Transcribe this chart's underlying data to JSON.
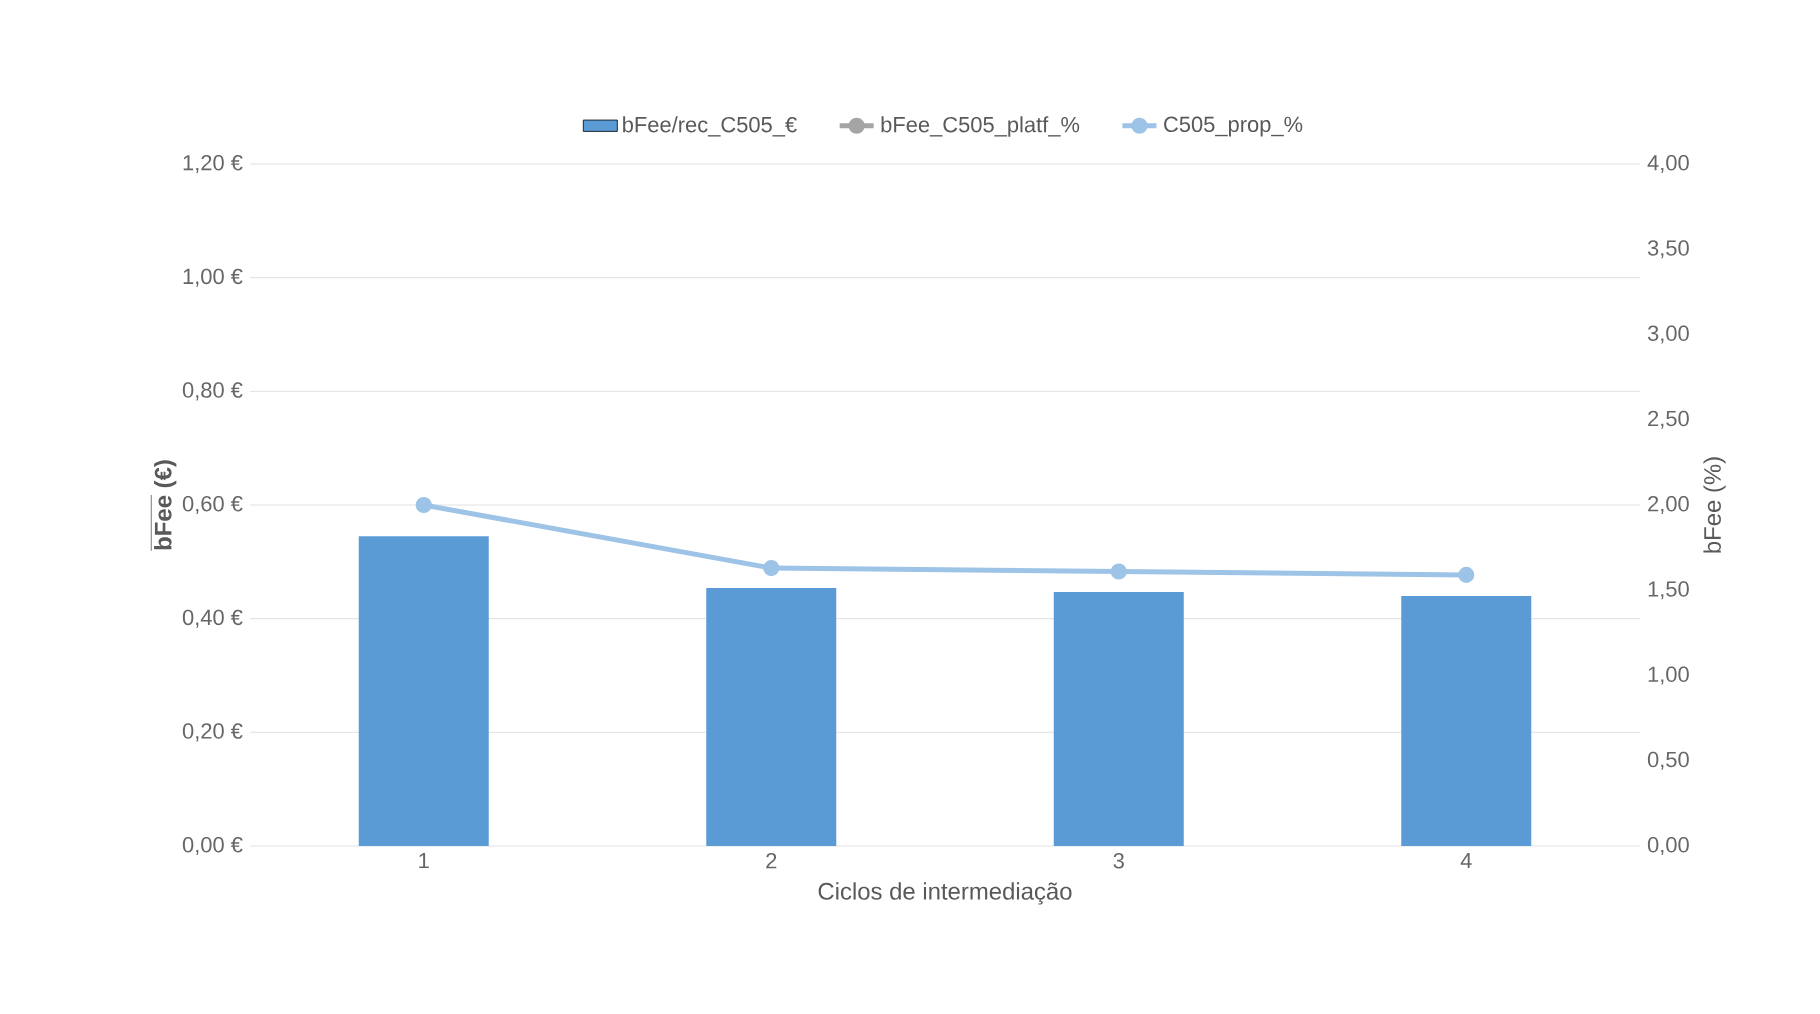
{
  "chart_data": {
    "type": "bar",
    "xlabel": "Ciclos de intermediação",
    "ylabel": "\\overline{\\mathbf{bFee}}\\ \\mbox{\\textbf{(€)}}",
    "y2label": "bFee (%)",
    "categories": [
      "1",
      "2",
      "3",
      "4"
    ],
    "series": [
      {
        "name": "bFee/rec_C505_€",
        "color": "#5b9bd5",
        "values": [
          0.545,
          0.454,
          0.447,
          0.44
        ]
      },
      {
        "name": "bFee_C505_platf_%",
        "type": "line",
        "axis": "y2",
        "color": "#a5a5a5",
        "marker": "circle",
        "values": [
          null,
          null,
          null,
          null
        ]
      },
      {
        "name": "C505_prop_%",
        "type": "line",
        "axis": "y2",
        "color": "#9dc3e6",
        "marker": "circle",
        "values": [
          2.0,
          1.63,
          1.61,
          1.59
        ]
      }
    ],
    "ylim": [
      0,
      1.2
    ],
    "yticks": [
      {
        "value": 0,
        "label": "0,00 €"
      },
      {
        "value": 0.2,
        "label": "0,20 €"
      },
      {
        "value": 0.4,
        "label": "0,40 €"
      },
      {
        "value": 0.6,
        "label": "0,60 €"
      },
      {
        "value": 0.8,
        "label": "0,80 €"
      },
      {
        "value": 1.0,
        "label": "1,00 €"
      },
      {
        "value": 1.2,
        "label": "1,20 €"
      }
    ],
    "y2lim": [
      0,
      4
    ],
    "y2ticks": [
      {
        "value": 0,
        "label": "0,00"
      },
      {
        "value": 0.5,
        "label": "0,50"
      },
      {
        "value": 1,
        "label": "1,00"
      },
      {
        "value": 1.5,
        "label": "1,50"
      },
      {
        "value": 2,
        "label": "2,00"
      },
      {
        "value": 2.5,
        "label": "2,50"
      },
      {
        "value": 3,
        "label": "3,00"
      },
      {
        "value": 3.5,
        "label": "3,50"
      },
      {
        "value": 4,
        "label": "4,00"
      }
    ],
    "grid": "y",
    "legend": "top"
  }
}
